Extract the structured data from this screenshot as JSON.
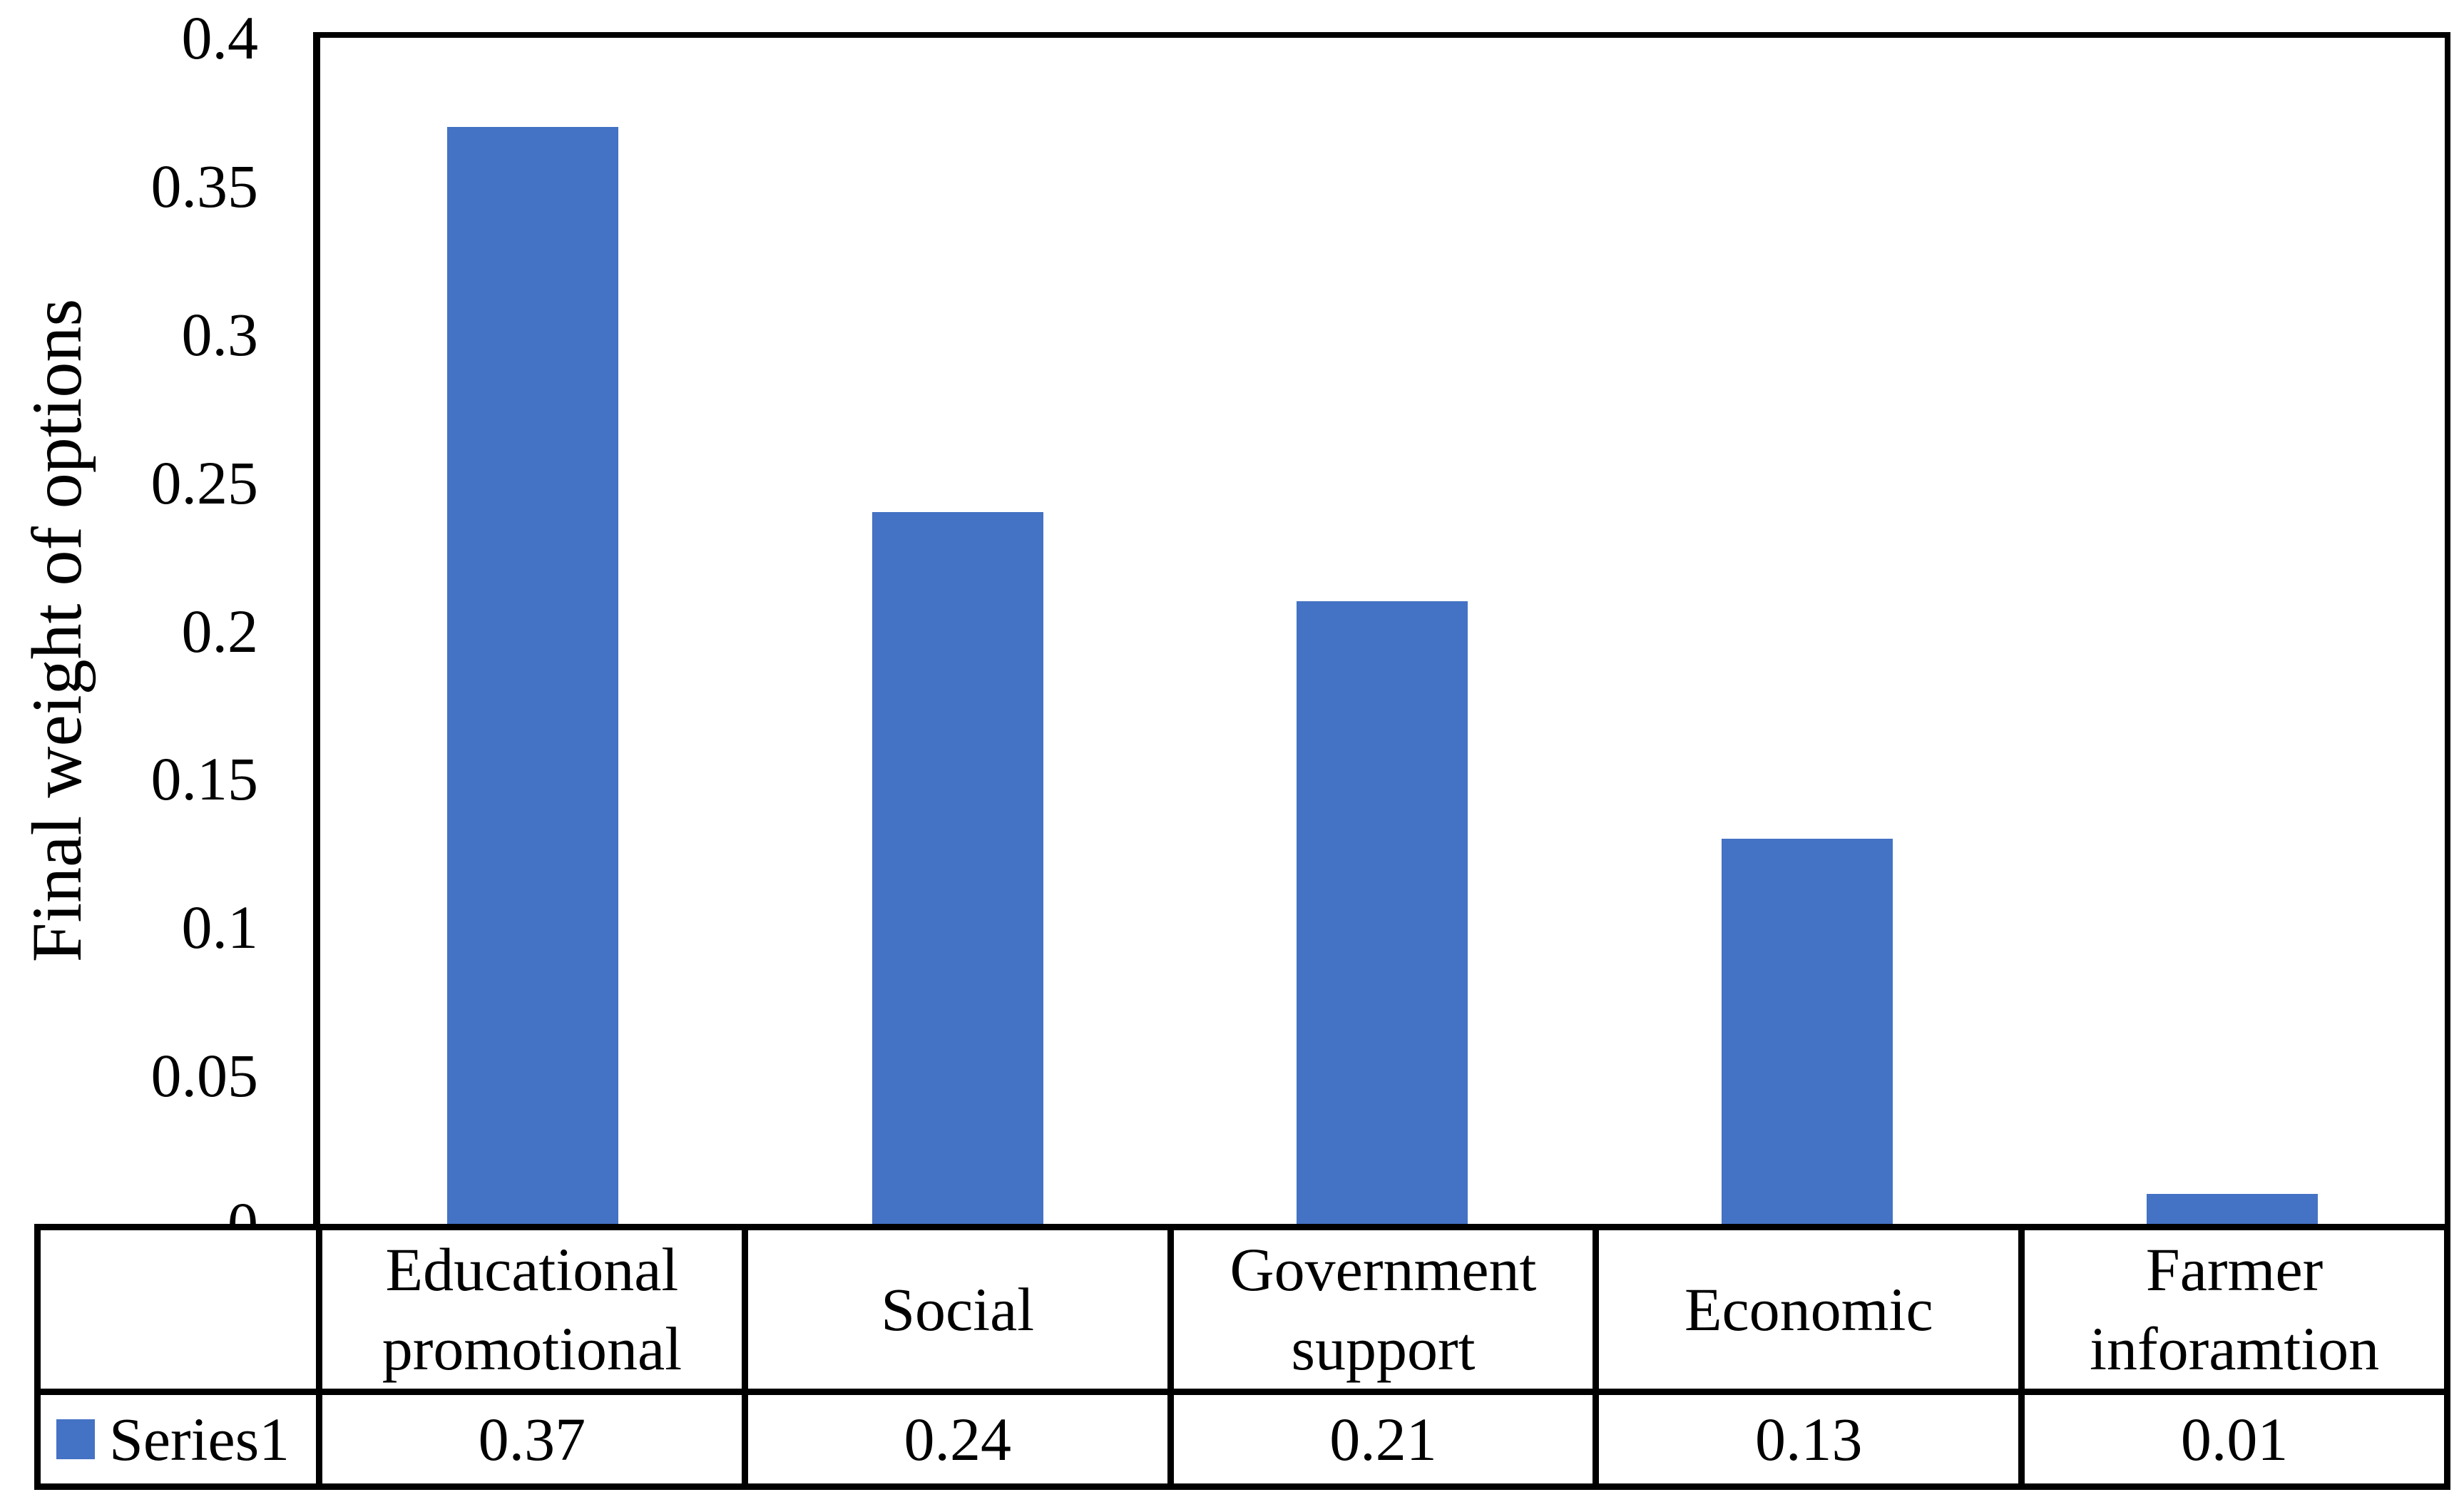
{
  "chart_data": {
    "type": "bar",
    "title": "",
    "categories": [
      "Educational promotional",
      "Social",
      "Government support",
      "Economic",
      "Farmer inforamtion"
    ],
    "series": [
      {
        "name": "Series1",
        "values": [
          0.37,
          0.24,
          0.21,
          0.13,
          0.01
        ]
      }
    ],
    "value_labels": [
      "0.37",
      "0.24",
      "0.21",
      "0.13",
      "0.01"
    ],
    "xlabel": "",
    "ylabel": "Final weight of options",
    "ylim": [
      0,
      0.4
    ],
    "yticks": [
      0.4,
      0.35,
      0.3,
      0.25,
      0.2,
      0.15,
      0.1,
      0.05,
      0
    ],
    "ytick_labels": [
      "0.4",
      "0.35",
      "0.3",
      "0.25",
      "0.2",
      "0.15",
      "0.1",
      "0.05",
      "0"
    ],
    "grid": false,
    "legend_position": "data-table-left-row",
    "bar_color": "#4472C4",
    "axis_color": "#000000",
    "background_color": "#FFFFFF",
    "data_table_shown": true
  }
}
